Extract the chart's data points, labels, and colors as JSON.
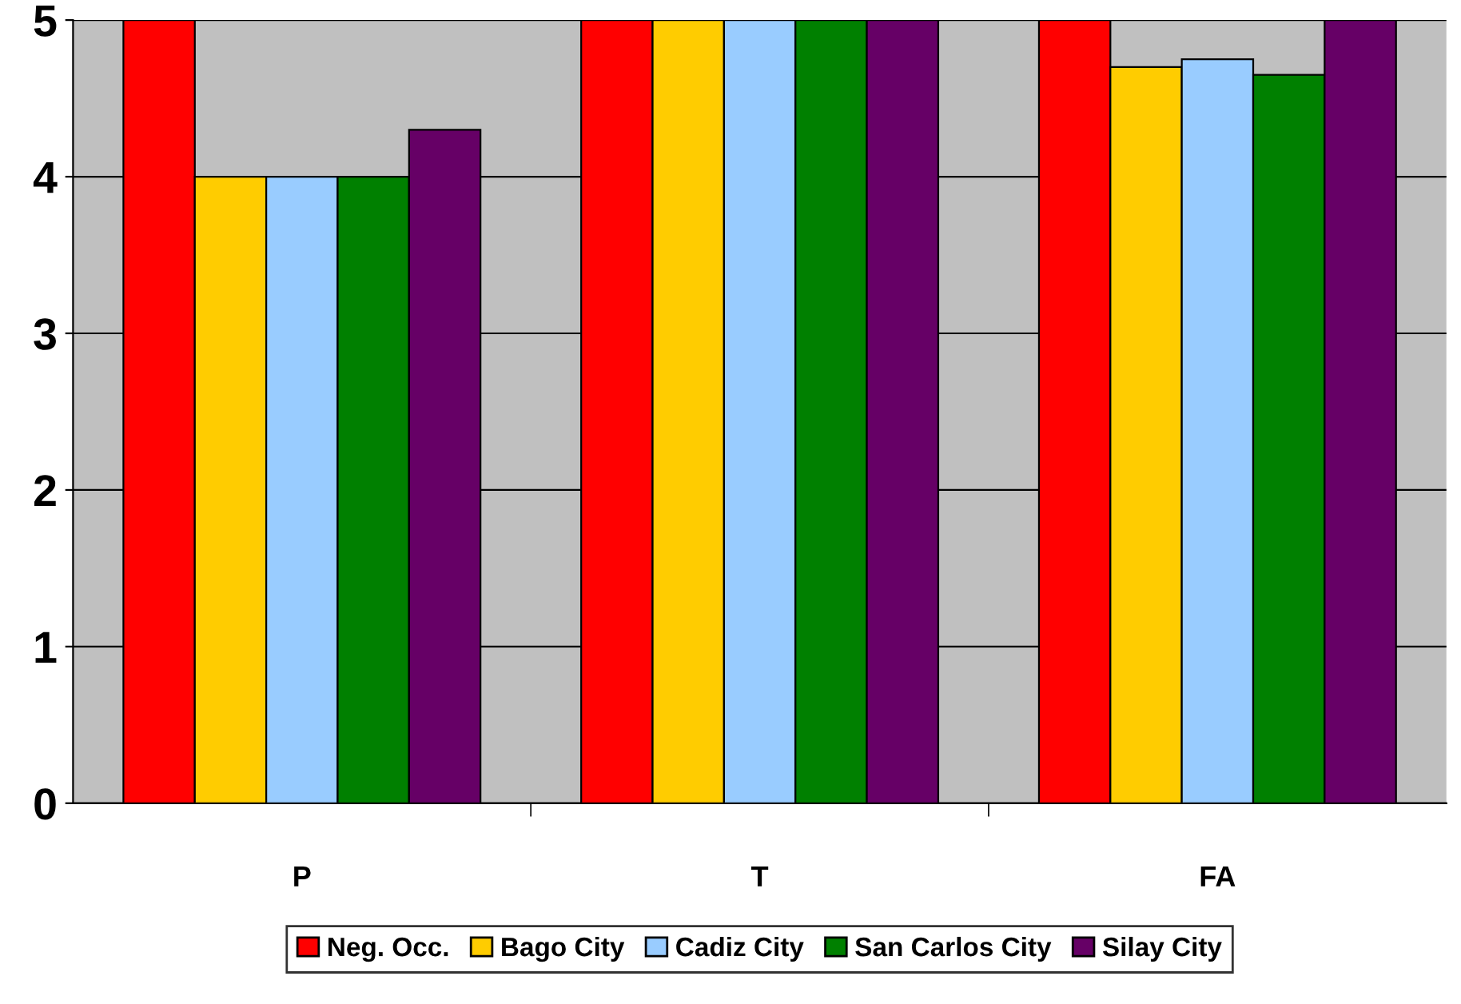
{
  "chart_data": {
    "type": "bar",
    "categories": [
      "P",
      "T",
      "FA"
    ],
    "series": [
      {
        "name": "Neg. Occ.",
        "color": "#ff0000",
        "values": [
          5,
          5,
          5
        ]
      },
      {
        "name": "Bago City",
        "color": "#ffcc00",
        "values": [
          4,
          5,
          4.7
        ]
      },
      {
        "name": "Cadiz City",
        "color": "#99ccff",
        "values": [
          4,
          5,
          4.75
        ]
      },
      {
        "name": "San Carlos City",
        "color": "#008000",
        "values": [
          4,
          5,
          4.65
        ]
      },
      {
        "name": "Silay City",
        "color": "#660066",
        "values": [
          4.3,
          5,
          5
        ]
      }
    ],
    "ylim": [
      0,
      5
    ],
    "yticks": [
      0,
      1,
      2,
      3,
      4,
      5
    ],
    "grid": "y",
    "legend": "bottom"
  }
}
